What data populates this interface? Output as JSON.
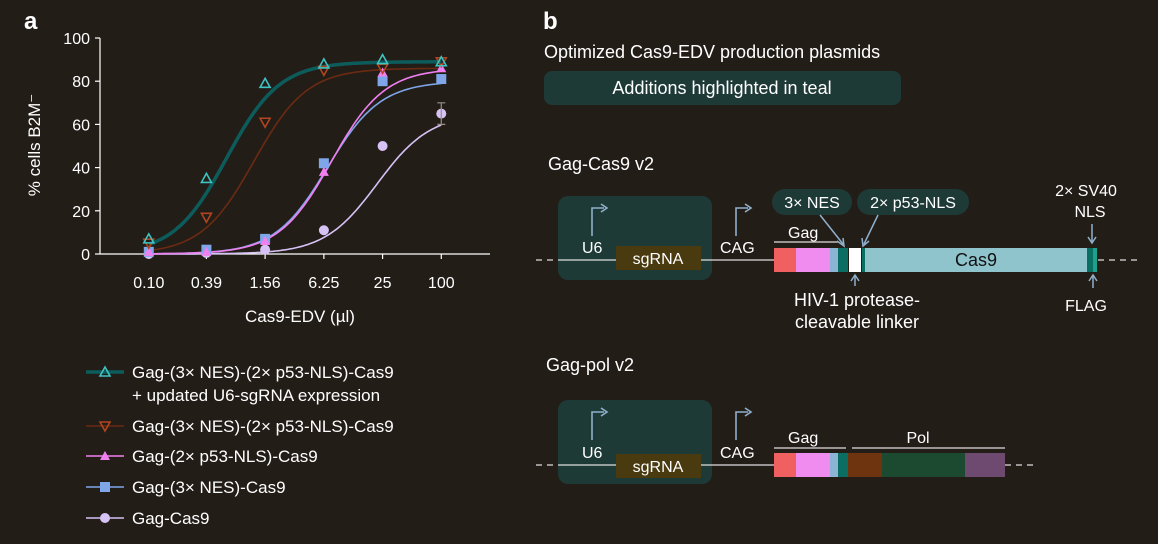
{
  "panel_a_label": "a",
  "panel_b_label": "b",
  "chart_data": {
    "type": "line",
    "xlabel": "Cas9-EDV (µl)",
    "ylabel": "% cells B2M⁻",
    "ylim": [
      0,
      100
    ],
    "x_scale": "log",
    "x": [
      0.1,
      0.39,
      1.56,
      6.25,
      25,
      100
    ],
    "x_tick_labels": [
      "0.10",
      "0.39",
      "1.56",
      "6.25",
      "25",
      "100"
    ],
    "y_ticks": [
      0,
      20,
      40,
      60,
      80,
      100
    ],
    "series": [
      {
        "name": "Gag-(3× NES)-(2× p53-NLS)-Cas9",
        "name_line2": "+ updated U6-sgRNA expression",
        "color": "#0d5c5c",
        "marker": "triangle-up-open",
        "marker_color": "#3ec4c4",
        "values": [
          7,
          35,
          79,
          88,
          90,
          89
        ],
        "ec50": 0.63,
        "top": 89
      },
      {
        "name": "Gag-(3× NES)-(2× p53-NLS)-Cas9",
        "color": "#6b2a12",
        "marker": "triangle-down-open",
        "marker_color": "#b0451f",
        "values": [
          5,
          17,
          61,
          85,
          86,
          89
        ],
        "ec50": 1.2,
        "top": 86
      },
      {
        "name": "Gag-(2× p53-NLS)-Cas9",
        "color": "#f080f0",
        "marker": "triangle-up",
        "marker_color": "#f080f0",
        "values": [
          1,
          1,
          6,
          38,
          84,
          86
        ],
        "ec50": 7.5,
        "top": 86
      },
      {
        "name": "Gag-(3× NES)-Cas9",
        "color": "#7ea6e8",
        "marker": "square",
        "marker_color": "#7ea6e8",
        "values": [
          1,
          2,
          7,
          42,
          80,
          81
        ],
        "ec50": 6.8,
        "top": 80
      },
      {
        "name": "Gag-Cas9",
        "color": "#d6c2f5",
        "marker": "circle",
        "marker_color": "#d6c2f5",
        "values": [
          0,
          0.5,
          2,
          11,
          50,
          65
        ],
        "ec50": 22,
        "top": 65
      }
    ]
  },
  "diagram": {
    "title": "Optimized Cas9-EDV production plasmids",
    "highlight_note": "Additions highlighted in teal",
    "construct1": {
      "name": "Gag-Cas9 v2",
      "promoter1": "U6",
      "guide": "sgRNA",
      "promoter2": "CAG",
      "gag_label": "Gag",
      "nes_label": "3× NES",
      "nls_label": "2× p53-NLS",
      "cas9_label": "Cas9",
      "sv40_label_line1": "2× SV40",
      "sv40_label_line2": "NLS",
      "linker_label_line1": "HIV-1 protease-",
      "linker_label_line2": "cleavable linker",
      "flag_label": "FLAG"
    },
    "construct2": {
      "name": "Gag-pol v2",
      "promoter1": "U6",
      "guide": "sgRNA",
      "promoter2": "CAG",
      "gag_label": "Gag",
      "pol_label": "Pol"
    },
    "colors": {
      "teal_box": "#1e3a36",
      "sgRNA": "#4a3a10",
      "gag_red": "#f06060",
      "gag_pink": "#f08cf0",
      "gag_lightblue": "#8cb4d4",
      "teal": "#0b6e62",
      "cas9": "#8fc4cc",
      "pol_brown": "#6e3410",
      "pol_green": "#1c4a30",
      "pol_purple": "#6e4a70"
    }
  }
}
